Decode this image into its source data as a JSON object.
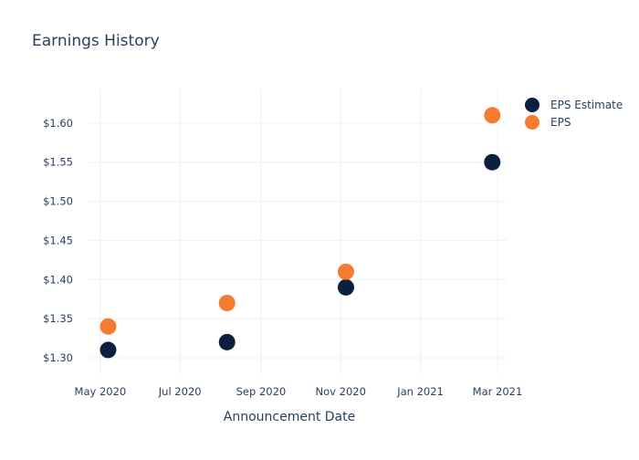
{
  "colors": {
    "estimate": "#0b1f3f",
    "actual": "#f47c30",
    "text": "#2a3f5f",
    "grid": "#ebf0f8"
  },
  "chart_data": {
    "type": "scatter",
    "title": "Earnings History",
    "xlabel": "Announcement Date",
    "ylabel": "",
    "x_tick_labels": [
      "May 2020",
      "Jul 2020",
      "Sep 2020",
      "Nov 2020",
      "Jan 2021",
      "Mar 2021"
    ],
    "x_ticks": [
      "2020-05-01",
      "2020-07-01",
      "2020-09-01",
      "2020-11-01",
      "2021-01-01",
      "2021-03-01"
    ],
    "xlim": [
      "2020-04-22",
      "2021-03-08"
    ],
    "y_tick_labels": [
      "$1.30",
      "$1.35",
      "$1.40",
      "$1.45",
      "$1.50",
      "$1.55",
      "$1.60"
    ],
    "y_ticks": [
      1.3,
      1.35,
      1.4,
      1.45,
      1.5,
      1.55,
      1.6
    ],
    "ylim": [
      1.279,
      1.643
    ],
    "legend_position": "top-right",
    "grid": true,
    "series": [
      {
        "name": "EPS Estimate",
        "color": "#0b1f3f",
        "x": [
          "2020-05-07",
          "2020-08-06",
          "2020-11-05",
          "2021-02-25"
        ],
        "y": [
          1.31,
          1.32,
          1.39,
          1.55
        ]
      },
      {
        "name": "EPS",
        "color": "#f47c30",
        "x": [
          "2020-05-07",
          "2020-08-06",
          "2020-11-05",
          "2021-02-25"
        ],
        "y": [
          1.34,
          1.37,
          1.41,
          1.61
        ]
      }
    ]
  }
}
